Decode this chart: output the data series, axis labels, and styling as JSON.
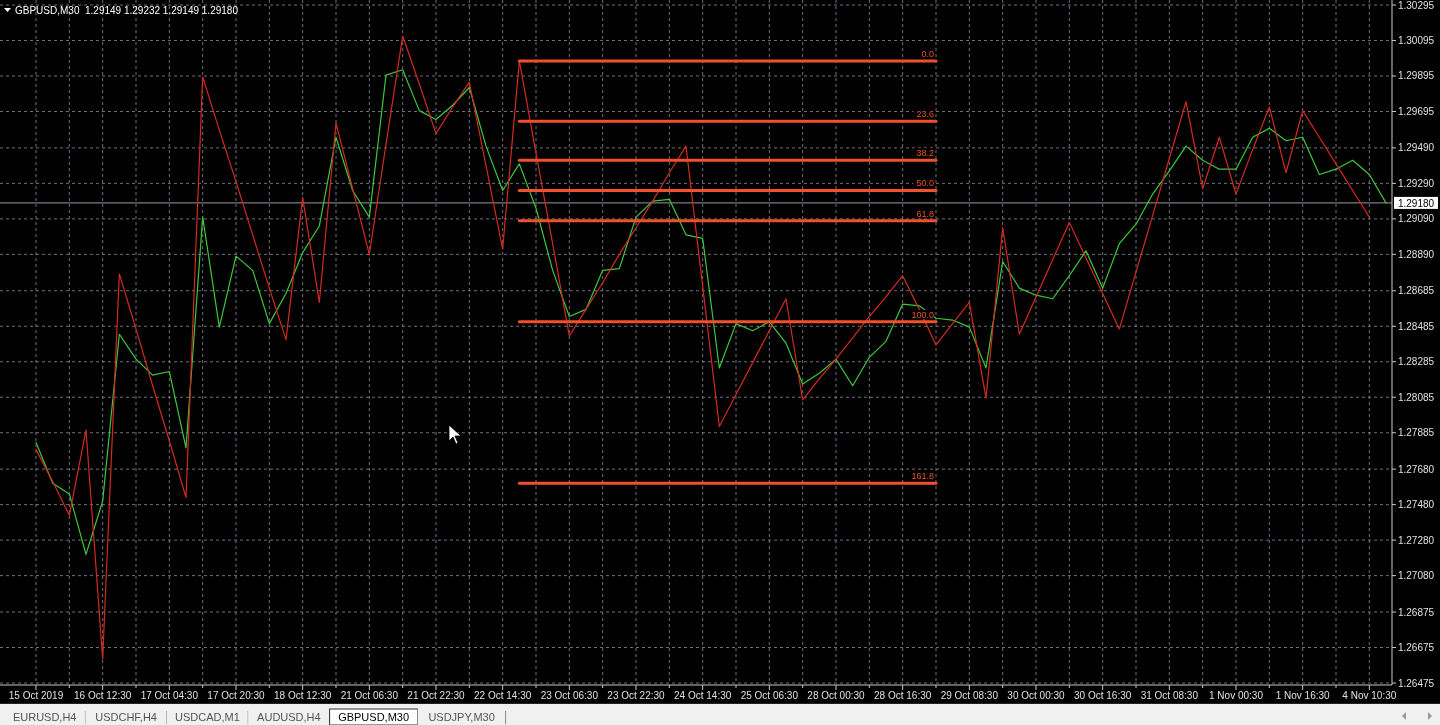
{
  "chart_data": {
    "type": "line",
    "title": "GBPUSD,M30  1.29149 1.29232 1.29149 1.29180",
    "categories": [
      "15 Oct 2019",
      null,
      null,
      null,
      "16 Oct 12:30",
      null,
      null,
      null,
      "17 Oct 04:30",
      null,
      null,
      null,
      "17 Oct 20:30",
      null,
      null,
      null,
      "18 Oct 12:30",
      null,
      null,
      null,
      "21 Oct 06:30",
      null,
      null,
      null,
      "21 Oct 22:30",
      null,
      null,
      null,
      "22 Oct 14:30",
      null,
      null,
      null,
      "23 Oct 06:30",
      null,
      null,
      null,
      "23 Oct 22:30",
      null,
      null,
      null,
      "24 Oct 14:30",
      null,
      null,
      null,
      "25 Oct 06:30",
      null,
      null,
      null,
      "28 Oct 00:30",
      null,
      null,
      null,
      "28 Oct 16:30",
      null,
      null,
      null,
      "29 Oct 08:30",
      null,
      null,
      null,
      "30 Oct 00:30",
      null,
      null,
      null,
      "30 Oct 16:30",
      null,
      null,
      null,
      "31 Oct 08:30",
      null,
      null,
      null,
      "1 Nov 00:30",
      null,
      null,
      null,
      "1 Nov 16:30",
      null,
      null,
      null,
      "4 Nov 10:30",
      null
    ],
    "ylim": [
      1.26475,
      1.30295
    ],
    "yticks": [
      1.30295,
      1.30095,
      1.29895,
      1.29695,
      {
        "value": 1.2949,
        "label": "1.29490"
      },
      {
        "value": 1.2929,
        "label": "1.29290"
      },
      {
        "value": 1.2909,
        "label": "1.29090"
      },
      {
        "value": 1.2889,
        "label": "1.28890"
      },
      1.28685,
      1.28485,
      1.28285,
      1.28085,
      1.27885,
      {
        "value": 1.2768,
        "label": "1.27680"
      },
      {
        "value": 1.2748,
        "label": "1.27480"
      },
      {
        "value": 1.2728,
        "label": "1.27280"
      },
      {
        "value": 1.2708,
        "label": "1.27080"
      },
      1.26875,
      1.26675,
      1.26475
    ],
    "grid": true,
    "ref_lines": [
      {
        "axis": "y",
        "value": 1.2918,
        "label": "1.29180",
        "color": "#9a9aa8"
      }
    ],
    "annotations": [
      "EURUSD,H4",
      "USDCHF,H4",
      "USDCAD,M1",
      "AUDUSD,H4",
      "GBPUSD,M30",
      "USDJPY,M30"
    ],
    "series": [
      {
        "color": "#3cc83c",
        "values": [
          1.2783,
          1.276,
          1.2754,
          1.272,
          1.275,
          1.2844,
          1.283,
          1.2821,
          1.2823,
          1.278,
          1.291,
          1.2848,
          1.2888,
          1.288,
          1.285,
          1.2867,
          1.289,
          1.2905,
          1.2955,
          1.2925,
          1.291,
          1.299,
          1.2993,
          1.297,
          1.2965,
          1.2973,
          1.2983,
          1.295,
          1.2925,
          1.294,
          1.2915,
          1.288,
          1.2854,
          1.2858,
          1.288,
          1.2881,
          1.291,
          1.2919,
          1.292,
          1.29,
          1.2898,
          1.2825,
          1.285,
          1.2846,
          1.2851,
          1.2839,
          1.2816,
          1.2822,
          1.283,
          1.2815,
          1.2831,
          1.284,
          1.2861,
          1.286,
          1.2853,
          1.2852,
          1.2848,
          1.2825,
          1.2885,
          1.287,
          1.2866,
          1.2864,
          1.2877,
          1.2891,
          1.287,
          1.2895,
          1.2906,
          1.2923,
          1.2936,
          1.295,
          1.2942,
          1.2937,
          1.2937,
          1.2955,
          1.296,
          1.2953,
          1.2955,
          1.2934,
          1.2937,
          1.2942,
          1.2934,
          1.2918
        ]
      },
      {
        "color": "#d42a1e",
        "values": [
          1.2779,
          1.2761,
          1.2742,
          1.279,
          1.2661,
          1.2878,
          1.2847,
          1.2815,
          1.2784,
          1.2752,
          1.2989,
          1.2959,
          1.293,
          1.29,
          1.287,
          1.2841,
          1.2921,
          1.2862,
          1.2963,
          1.2926,
          1.2889,
          1.2951,
          1.3012,
          1.2985,
          1.2957,
          1.2972,
          1.2986,
          1.2939,
          1.2892,
          1.2998,
          1.2946,
          1.2895,
          1.2843,
          1.2858,
          1.2873,
          1.2889,
          1.2904,
          1.2919,
          1.2935,
          1.295,
          1.2871,
          1.2792,
          1.281,
          1.2828,
          1.2846,
          1.2864,
          1.2807,
          1.2819,
          1.283,
          1.2842,
          1.2854,
          1.2865,
          1.2877,
          1.2858,
          1.2838,
          1.285,
          1.2862,
          1.2808,
          1.2904,
          1.2844,
          1.2865,
          1.2886,
          1.2907,
          1.2887,
          1.2867,
          1.2847,
          1.2879,
          1.2911,
          1.2943,
          1.2975,
          1.2926,
          1.2955,
          1.2923,
          1.2948,
          1.2972,
          1.2935,
          1.297,
          1.2955,
          1.294,
          1.2925,
          1.291,
          null
        ]
      },
      {
        "name": "0.0",
        "color": "#f0502a",
        "values": [
          null,
          null,
          null,
          null,
          null,
          null,
          null,
          null,
          null,
          null,
          null,
          null,
          null,
          null,
          null,
          null,
          null,
          null,
          null,
          null,
          null,
          null,
          null,
          null,
          null,
          null,
          null,
          null,
          null,
          1.2998,
          1.2998,
          1.2998,
          1.2998,
          1.2998,
          1.2998,
          1.2998,
          1.2998,
          1.2998,
          1.2998,
          1.2998,
          1.2998,
          1.2998,
          1.2998,
          1.2998,
          1.2998,
          1.2998,
          1.2998,
          1.2998,
          1.2998,
          1.2998,
          1.2998,
          1.2998,
          1.2998,
          1.2998,
          1.2998,
          null,
          null,
          null,
          null,
          null,
          null,
          null,
          null,
          null,
          null,
          null,
          null,
          null,
          null,
          null,
          null,
          null,
          null,
          null,
          null,
          null,
          null,
          null,
          null,
          null,
          null,
          null
        ]
      },
      {
        "name": "23.6",
        "color": "#f0502a",
        "values": [
          null,
          null,
          null,
          null,
          null,
          null,
          null,
          null,
          null,
          null,
          null,
          null,
          null,
          null,
          null,
          null,
          null,
          null,
          null,
          null,
          null,
          null,
          null,
          null,
          null,
          null,
          null,
          null,
          null,
          1.2964,
          1.2964,
          1.2964,
          1.2964,
          1.2964,
          1.2964,
          1.2964,
          1.2964,
          1.2964,
          1.2964,
          1.2964,
          1.2964,
          1.2964,
          1.2964,
          1.2964,
          1.2964,
          1.2964,
          1.2964,
          1.2964,
          1.2964,
          1.2964,
          1.2964,
          1.2964,
          1.2964,
          1.2964,
          1.2964,
          null,
          null,
          null,
          null,
          null,
          null,
          null,
          null,
          null,
          null,
          null,
          null,
          null,
          null,
          null,
          null,
          null,
          null,
          null,
          null,
          null,
          null,
          null,
          null,
          null,
          null,
          null
        ]
      },
      {
        "name": "38.2",
        "color": "#f0502a",
        "values": [
          null,
          null,
          null,
          null,
          null,
          null,
          null,
          null,
          null,
          null,
          null,
          null,
          null,
          null,
          null,
          null,
          null,
          null,
          null,
          null,
          null,
          null,
          null,
          null,
          null,
          null,
          null,
          null,
          null,
          1.2942,
          1.2942,
          1.2942,
          1.2942,
          1.2942,
          1.2942,
          1.2942,
          1.2942,
          1.2942,
          1.2942,
          1.2942,
          1.2942,
          1.2942,
          1.2942,
          1.2942,
          1.2942,
          1.2942,
          1.2942,
          1.2942,
          1.2942,
          1.2942,
          1.2942,
          1.2942,
          1.2942,
          1.2942,
          1.2942,
          null,
          null,
          null,
          null,
          null,
          null,
          null,
          null,
          null,
          null,
          null,
          null,
          null,
          null,
          null,
          null,
          null,
          null,
          null,
          null,
          null,
          null,
          null,
          null,
          null,
          null,
          null
        ]
      },
      {
        "name": "50.0",
        "color": "#f0502a",
        "values": [
          null,
          null,
          null,
          null,
          null,
          null,
          null,
          null,
          null,
          null,
          null,
          null,
          null,
          null,
          null,
          null,
          null,
          null,
          null,
          null,
          null,
          null,
          null,
          null,
          null,
          null,
          null,
          null,
          null,
          1.2925,
          1.2925,
          1.2925,
          1.2925,
          1.2925,
          1.2925,
          1.2925,
          1.2925,
          1.2925,
          1.2925,
          1.2925,
          1.2925,
          1.2925,
          1.2925,
          1.2925,
          1.2925,
          1.2925,
          1.2925,
          1.2925,
          1.2925,
          1.2925,
          1.2925,
          1.2925,
          1.2925,
          1.2925,
          1.2925,
          null,
          null,
          null,
          null,
          null,
          null,
          null,
          null,
          null,
          null,
          null,
          null,
          null,
          null,
          null,
          null,
          null,
          null,
          null,
          null,
          null,
          null,
          null,
          null,
          null,
          null,
          null
        ]
      },
      {
        "name": "61.8",
        "color": "#f0502a",
        "values": [
          null,
          null,
          null,
          null,
          null,
          null,
          null,
          null,
          null,
          null,
          null,
          null,
          null,
          null,
          null,
          null,
          null,
          null,
          null,
          null,
          null,
          null,
          null,
          null,
          null,
          null,
          null,
          null,
          null,
          1.2908,
          1.2908,
          1.2908,
          1.2908,
          1.2908,
          1.2908,
          1.2908,
          1.2908,
          1.2908,
          1.2908,
          1.2908,
          1.2908,
          1.2908,
          1.2908,
          1.2908,
          1.2908,
          1.2908,
          1.2908,
          1.2908,
          1.2908,
          1.2908,
          1.2908,
          1.2908,
          1.2908,
          1.2908,
          1.2908,
          null,
          null,
          null,
          null,
          null,
          null,
          null,
          null,
          null,
          null,
          null,
          null,
          null,
          null,
          null,
          null,
          null,
          null,
          null,
          null,
          null,
          null,
          null,
          null,
          null,
          null,
          null
        ]
      },
      {
        "name": "100.0",
        "color": "#f0502a",
        "values": [
          null,
          null,
          null,
          null,
          null,
          null,
          null,
          null,
          null,
          null,
          null,
          null,
          null,
          null,
          null,
          null,
          null,
          null,
          null,
          null,
          null,
          null,
          null,
          null,
          null,
          null,
          null,
          null,
          null,
          1.2851,
          1.2851,
          1.2851,
          1.2851,
          1.2851,
          1.2851,
          1.2851,
          1.2851,
          1.2851,
          1.2851,
          1.2851,
          1.2851,
          1.2851,
          1.2851,
          1.2851,
          1.2851,
          1.2851,
          1.2851,
          1.2851,
          1.2851,
          1.2851,
          1.2851,
          1.2851,
          1.2851,
          1.2851,
          1.2851,
          null,
          null,
          null,
          null,
          null,
          null,
          null,
          null,
          null,
          null,
          null,
          null,
          null,
          null,
          null,
          null,
          null,
          null,
          null,
          null,
          null,
          null,
          null,
          null,
          null,
          null,
          null
        ]
      },
      {
        "name": "161.8",
        "color": "#f0502a",
        "values": [
          null,
          null,
          null,
          null,
          null,
          null,
          null,
          null,
          null,
          null,
          null,
          null,
          null,
          null,
          null,
          null,
          null,
          null,
          null,
          null,
          null,
          null,
          null,
          null,
          null,
          null,
          null,
          null,
          null,
          1.276,
          1.276,
          1.276,
          1.276,
          1.276,
          1.276,
          1.276,
          1.276,
          1.276,
          1.276,
          1.276,
          1.276,
          1.276,
          1.276,
          1.276,
          1.276,
          1.276,
          1.276,
          1.276,
          1.276,
          1.276,
          1.276,
          1.276,
          1.276,
          1.276,
          1.276,
          null,
          null,
          null,
          null,
          null,
          null,
          null,
          null,
          null,
          null,
          null,
          null,
          null,
          null,
          null,
          null,
          null,
          null,
          null,
          null,
          null,
          null,
          null,
          null,
          null,
          null,
          null
        ]
      }
    ]
  }
}
